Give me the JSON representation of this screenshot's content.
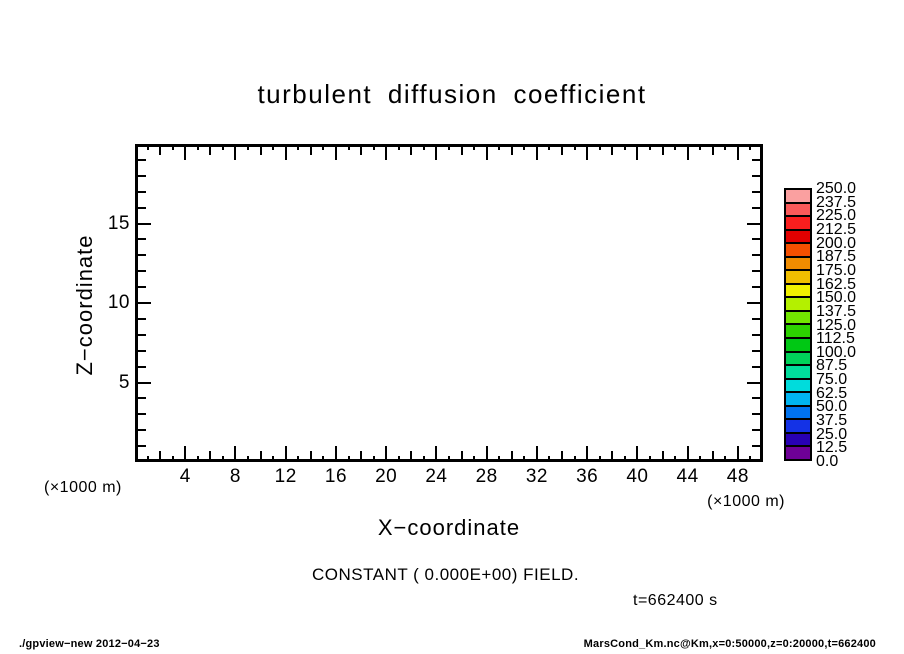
{
  "chart_data": {
    "type": "heatmap",
    "title": "turbulent diffusion coefficient",
    "xlabel": "X−coordinate",
    "ylabel": "Z−coordinate",
    "x_unit": "(×1000 m)",
    "y_unit": "(×1000 m)",
    "xlim": [
      0,
      50
    ],
    "ylim": [
      0,
      20
    ],
    "x_major_tick_step": 4,
    "x_medium_tick_step": 2,
    "x_minor_tick_step": 1,
    "y_major_tick_step": 5,
    "y_minor_tick_step": 1,
    "x_tick_labels": [
      "4",
      "8",
      "12",
      "16",
      "20",
      "24",
      "28",
      "32",
      "36",
      "40",
      "44",
      "48"
    ],
    "x_tick_values": [
      4,
      8,
      12,
      16,
      20,
      24,
      28,
      32,
      36,
      40,
      44,
      48
    ],
    "y_tick_labels": [
      "5",
      "10",
      "15"
    ],
    "y_tick_values": [
      5,
      10,
      15
    ],
    "grid": false,
    "field_note": "field is constant zero everywhere, plot interior is blank",
    "constant_note": "CONSTANT ( 0.000E+00) FIELD.",
    "time_label": "t=662400 s",
    "colorbar": {
      "min": 0.0,
      "max": 250.0,
      "step": 12.5,
      "labels_top_to_bottom": [
        "250.0",
        "237.5",
        "225.0",
        "212.5",
        "200.0",
        "187.5",
        "175.0",
        "162.5",
        "150.0",
        "137.5",
        "125.0",
        "112.5",
        "100.0",
        "87.5",
        "75.0",
        "62.5",
        "50.0",
        "37.5",
        "25.0",
        "12.5",
        "0.0"
      ],
      "colors_top_to_bottom": [
        "#faa0a0",
        "#fa5a5a",
        "#fa1e1e",
        "#e10000",
        "#f55000",
        "#f08c00",
        "#f0be00",
        "#f0f000",
        "#b4f000",
        "#73e600",
        "#2dd200",
        "#00c814",
        "#00d25a",
        "#00dc9b",
        "#00dcdc",
        "#00b4f0",
        "#0073f0",
        "#1432e6",
        "#2800b4",
        "#6e0096"
      ]
    }
  },
  "footer": {
    "left": "./gpview−new  2012−04−23",
    "right": "MarsCond_Km.nc@Km,x=0:50000,z=0:20000,t=662400"
  }
}
